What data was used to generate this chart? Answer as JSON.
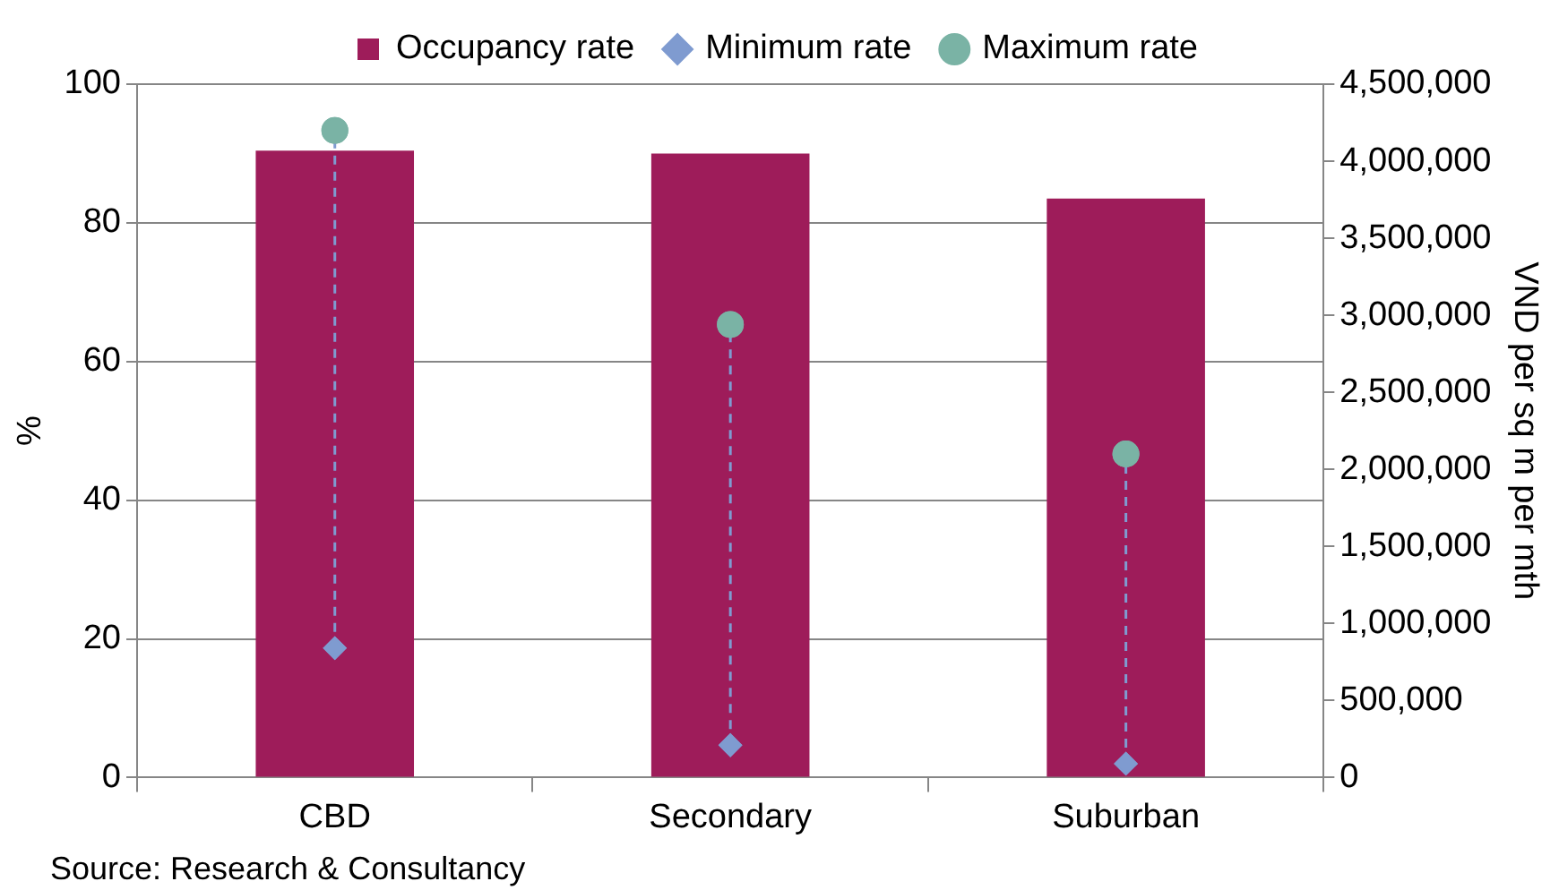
{
  "chart_data": {
    "type": "bar",
    "categories": [
      "CBD",
      "Secondary",
      "Suburban"
    ],
    "series": [
      {
        "name": "Occupancy rate",
        "color": "#9e1c5a",
        "values": [
          90.4,
          90.0,
          83.5
        ]
      },
      {
        "name": "Minimum rate",
        "type": "scatter",
        "axis": "y2",
        "marker": "diamond",
        "color": "#7f9bd0",
        "x": [
          "CBD",
          "Secondary",
          "Suburban"
        ],
        "values": [
          840000,
          210000,
          90000
        ]
      },
      {
        "name": "Maximum rate",
        "type": "scatter",
        "axis": "y2",
        "marker": "circle",
        "color": "#7ab3a5",
        "x": [
          "CBD",
          "Secondary",
          "Suburban"
        ],
        "values": [
          4200000,
          2940000,
          2100000
        ]
      }
    ],
    "ylabel": "%",
    "y2label": "VND per sq m per mth",
    "ylim": [
      0,
      100
    ],
    "yticks": [
      0,
      20,
      40,
      60,
      80,
      100
    ],
    "y2lim": [
      0,
      4500000
    ],
    "y2ticks": [
      0,
      {
        "value": 500000,
        "label": "500,000"
      },
      {
        "value": 1000000,
        "label": "1,000,000"
      },
      {
        "value": 1500000,
        "label": "1,500,000"
      },
      {
        "value": 2000000,
        "label": "2,000,000"
      },
      {
        "value": 2500000,
        "label": "2,500,000"
      },
      {
        "value": 3000000,
        "label": "3,000,000"
      },
      {
        "value": 3500000,
        "label": "3,500,000"
      },
      {
        "value": 4000000,
        "label": "4,000,000"
      },
      {
        "value": 4500000,
        "label": "4,500,000"
      }
    ],
    "grid": "y",
    "legend": "top",
    "annotations": [
      "Source: Research & Consultancy"
    ]
  }
}
